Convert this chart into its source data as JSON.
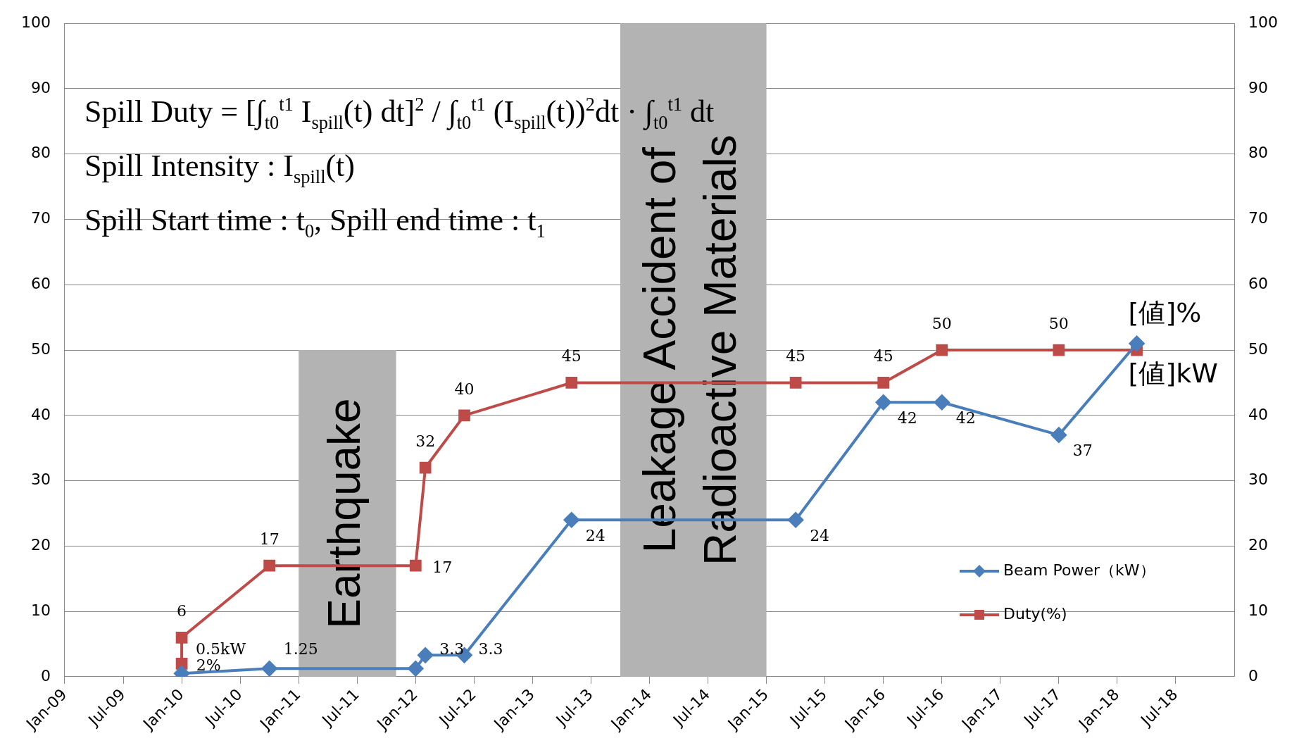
{
  "chart_data": {
    "type": "line",
    "xlim": [
      "2009-01",
      "2019-01"
    ],
    "xticks": [
      {
        "value": "2009-01",
        "label": "Jan-09"
      },
      {
        "value": "2009-07",
        "label": "Jul-09"
      },
      {
        "value": "2010-01",
        "label": "Jan-10"
      },
      {
        "value": "2010-07",
        "label": "Jul-10"
      },
      {
        "value": "2011-01",
        "label": "Jan-11"
      },
      {
        "value": "2011-07",
        "label": "Jul-11"
      },
      {
        "value": "2012-01",
        "label": "Jan-12"
      },
      {
        "value": "2012-07",
        "label": "Jul-12"
      },
      {
        "value": "2013-01",
        "label": "Jan-13"
      },
      {
        "value": "2013-07",
        "label": "Jul-13"
      },
      {
        "value": "2014-01",
        "label": "Jan-14"
      },
      {
        "value": "2014-07",
        "label": "Jul-14"
      },
      {
        "value": "2015-01",
        "label": "Jan-15"
      },
      {
        "value": "2015-07",
        "label": "Jul-15"
      },
      {
        "value": "2016-01",
        "label": "Jan-16"
      },
      {
        "value": "2016-07",
        "label": "Jul-16"
      },
      {
        "value": "2017-01",
        "label": "Jan-17"
      },
      {
        "value": "2017-07",
        "label": "Jul-17"
      },
      {
        "value": "2018-01",
        "label": "Jan-18"
      },
      {
        "value": "2018-07",
        "label": "Jul-18"
      }
    ],
    "ylim": [
      0,
      100
    ],
    "yticks": [
      0,
      10,
      20,
      30,
      40,
      50,
      60,
      70,
      80,
      90,
      100
    ],
    "y2lim": [
      0,
      100
    ],
    "y2ticks": [
      0,
      10,
      20,
      30,
      40,
      50,
      60,
      70,
      80,
      90,
      100
    ],
    "grid": "y",
    "legend": "bottom right",
    "series": [
      {
        "name": "Beam Power（kW）",
        "color": "#4a7ebb",
        "marker": "diamond",
        "x": [
          "2010-01",
          "2010-10",
          "2012-01",
          "2012-02",
          "2012-06",
          "2013-05",
          "2015-04",
          "2016-01",
          "2016-07",
          "2017-07",
          "2018-03"
        ],
        "values": [
          0.5,
          1.25,
          1.25,
          3.3,
          3.3,
          24,
          24,
          42,
          42,
          37,
          51
        ],
        "value_labels": [
          "0.5kW",
          "1.25",
          null,
          "3.3",
          "3.3",
          "24",
          "24",
          "42",
          "42",
          "37",
          "[値]kW"
        ]
      },
      {
        "name": "Duty(%)",
        "color": "#be4b48",
        "marker": "square",
        "x": [
          "2010-01",
          "2010-01",
          "2010-10",
          "2012-01",
          "2012-02",
          "2012-06",
          "2013-05",
          "2015-04",
          "2016-01",
          "2016-07",
          "2017-07",
          "2018-03"
        ],
        "values": [
          2,
          6,
          17,
          17,
          32,
          40,
          45,
          45,
          45,
          50,
          50,
          50
        ],
        "value_labels": [
          "2%",
          "6",
          "17",
          "17",
          "32",
          "40",
          "45",
          "45",
          "45",
          "50",
          "50",
          "[値]%"
        ]
      }
    ],
    "bands": [
      {
        "axis": "x",
        "from": "2011-01",
        "to": "2011-11",
        "label": "Earthquake",
        "color": "#b3b3b3"
      },
      {
        "axis": "x",
        "from": "2013-10",
        "to": "2015-01",
        "label": "Leakage Accident of Radioactive Materials",
        "color": "#b3b3b3"
      }
    ],
    "annotations": [
      "Spill Duty = [∫$_{t0}$$^{t1}$ I$_{spill}$(t) dt]$^{2}$ / ∫$_{t0}$$^{t1}$ (I$_{spill}$(t))$^{2}$dt · ∫$_{t0}$$^{t1}$ dt",
      "Spill Intensity : I$_{spill}$(t)",
      "Spill Start time : t$_{0}$, Spill end time : t$_{1}$"
    ]
  }
}
